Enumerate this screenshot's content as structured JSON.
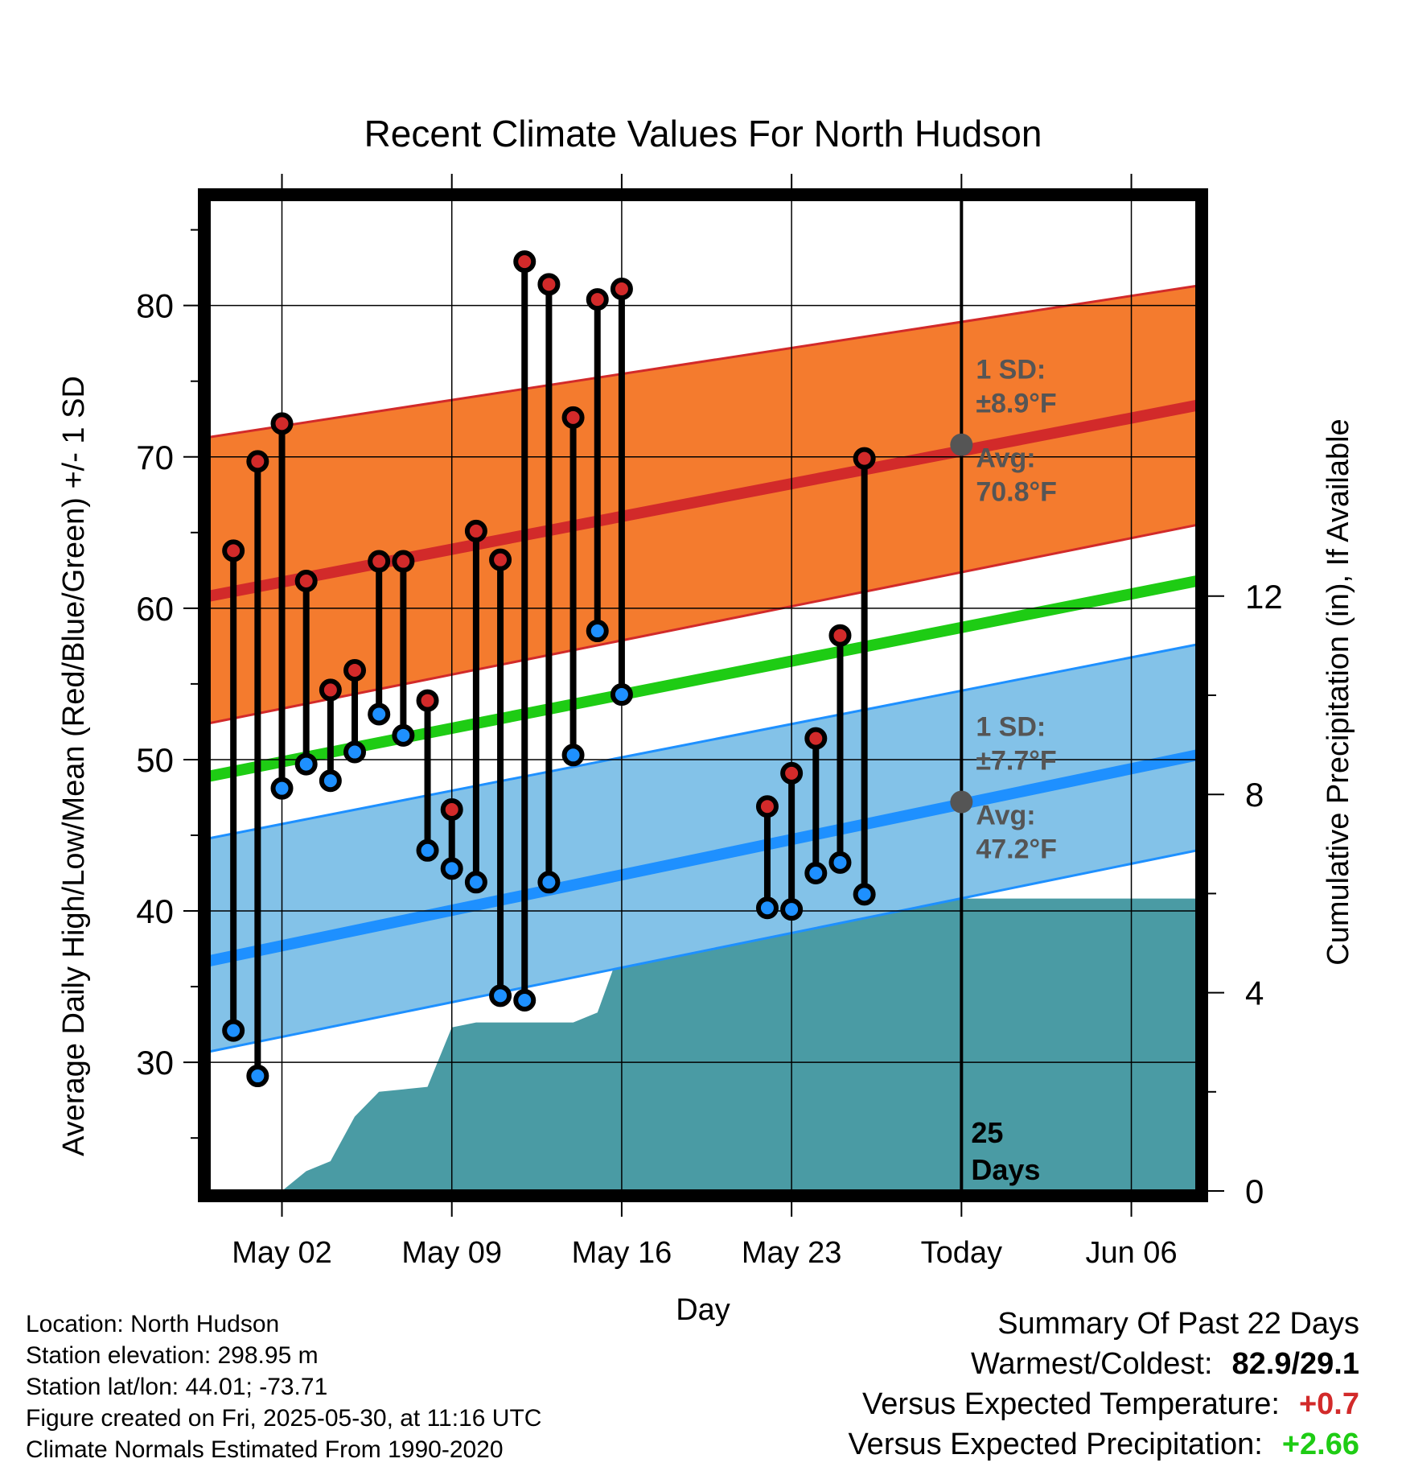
{
  "chart_data": {
    "type": "line",
    "title": "Recent Climate Values For North Hudson",
    "xlabel": "Day",
    "ylabel": "Average Daily High/Low/Mean (Red/Blue/Green) +/- 1 SD",
    "y2label": "Cumulative Precipitation (in), If Available",
    "x_ticks": [
      "May 02",
      "May 09",
      "May 16",
      "May 23",
      "Today",
      "Jun 06"
    ],
    "x_tick_days": [
      2,
      9,
      16,
      23,
      30,
      37
    ],
    "xlim": [
      -1.0,
      39.7
    ],
    "ylim": [
      21.5,
      87
    ],
    "y_ticks": [
      30,
      40,
      50,
      60,
      70,
      80
    ],
    "y2lim": [
      0,
      20
    ],
    "y2_ticks": [
      0,
      4,
      8,
      12
    ],
    "grid": true,
    "today_day": 30,
    "normals_days": [
      -1.0,
      39.7
    ],
    "normal_high": [
      60.8,
      73.4
    ],
    "normal_high_upper": [
      71.3,
      81.3
    ],
    "normal_high_lower": [
      52.4,
      65.5
    ],
    "normal_mean": [
      48.9,
      61.8
    ],
    "normal_low": [
      36.7,
      50.3
    ],
    "normal_low_upper": [
      44.8,
      57.6
    ],
    "normal_low_lower": [
      30.7,
      44.0
    ],
    "daily": {
      "days": [
        0,
        1,
        2,
        3,
        4,
        5,
        6,
        7,
        8,
        9,
        10,
        11,
        12,
        13,
        14,
        15,
        16,
        22,
        23,
        24,
        25,
        26
      ],
      "highs": [
        63.8,
        69.7,
        72.2,
        61.8,
        54.6,
        55.9,
        63.1,
        63.1,
        53.9,
        46.7,
        65.1,
        63.2,
        82.9,
        81.4,
        72.6,
        80.4,
        81.1,
        46.9,
        49.1,
        51.4,
        58.2,
        69.9
      ],
      "lows": [
        32.1,
        29.1,
        48.1,
        49.7,
        48.6,
        50.5,
        53.0,
        51.6,
        44.0,
        42.8,
        41.9,
        34.4,
        34.1,
        41.9,
        50.3,
        58.5,
        54.3,
        40.2,
        40.1,
        42.5,
        43.2,
        41.1
      ]
    },
    "precip": {
      "days": [
        2,
        3,
        4,
        5,
        6,
        7,
        8,
        9,
        10,
        11,
        12,
        13,
        14,
        15,
        16,
        17,
        18,
        19,
        20,
        21,
        22,
        23,
        24,
        25,
        39.7
      ],
      "values": [
        0.0,
        0.4,
        0.6,
        1.5,
        2.0,
        2.05,
        2.1,
        3.3,
        3.4,
        3.4,
        3.4,
        3.4,
        3.4,
        3.6,
        4.95,
        4.95,
        4.95,
        4.95,
        5.0,
        5.2,
        5.7,
        5.9,
        5.9,
        5.9,
        5.9
      ]
    },
    "annotations": {
      "high_sd_label": "1 SD:",
      "high_sd_value": "±8.9°F",
      "high_avg_label": "Avg:",
      "high_avg_value": "70.8°F",
      "high_avg": 70.8,
      "low_sd_label": "1 SD:",
      "low_sd_value": "±7.7°F",
      "low_avg_label": "Avg:",
      "low_avg_value": "47.2°F",
      "low_avg": 47.2,
      "days_number": "25",
      "days_label": "Days"
    },
    "colors": {
      "high_band": "#f47b2e",
      "high_line": "#d22a2a",
      "mean_line": "#1ecc14",
      "low_band": "#83c2e8",
      "low_line": "#1e90ff",
      "precip": "#4a9ba4",
      "high_dot": "#d22a2a",
      "low_dot": "#1e90ff",
      "avg_marker": "#555555",
      "annotation_text": "#555555"
    }
  },
  "info": {
    "location": "Location: North Hudson",
    "elevation": "Station elevation: 298.95 m",
    "latlon": "Station lat/lon: 44.01; -73.71",
    "created": "Figure created on Fri, 2025-05-30, at 11:16 UTC",
    "normals": "Climate Normals Estimated From 1990-2020"
  },
  "summary": {
    "title": "Summary Of Past 22 Days",
    "warm_cold_label": "Warmest/Coldest:",
    "warm_cold_value": "82.9/29.1",
    "temp_label": "Versus Expected Temperature:",
    "temp_value": "+0.7",
    "temp_color": "#d22a2a",
    "precip_label": "Versus Expected Precipitation:",
    "precip_value": "+2.66",
    "precip_color": "#1ecc14"
  }
}
